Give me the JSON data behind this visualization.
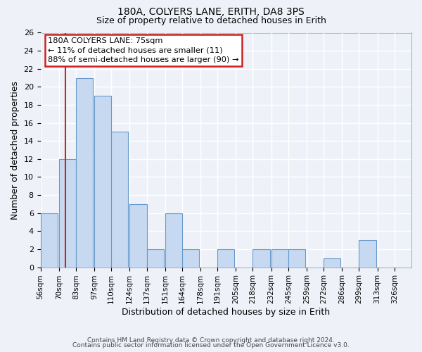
{
  "title": "180A, COLYERS LANE, ERITH, DA8 3PS",
  "subtitle": "Size of property relative to detached houses in Erith",
  "xlabel": "Distribution of detached houses by size in Erith",
  "ylabel": "Number of detached properties",
  "bin_labels": [
    "56sqm",
    "70sqm",
    "83sqm",
    "97sqm",
    "110sqm",
    "124sqm",
    "137sqm",
    "151sqm",
    "164sqm",
    "178sqm",
    "191sqm",
    "205sqm",
    "218sqm",
    "232sqm",
    "245sqm",
    "259sqm",
    "272sqm",
    "286sqm",
    "299sqm",
    "313sqm",
    "326sqm"
  ],
  "bar_values": [
    6,
    12,
    21,
    19,
    15,
    7,
    2,
    6,
    2,
    0,
    2,
    0,
    2,
    2,
    2,
    0,
    1,
    0,
    3,
    0,
    0
  ],
  "bar_color": "#c6d9f0",
  "bar_edge_color": "#6699cc",
  "vline_x": 75,
  "vline_color": "#cc2222",
  "ylim": [
    0,
    26
  ],
  "yticks": [
    0,
    2,
    4,
    6,
    8,
    10,
    12,
    14,
    16,
    18,
    20,
    22,
    24,
    26
  ],
  "annotation_title": "180A COLYERS LANE: 75sqm",
  "annotation_line1": "← 11% of detached houses are smaller (11)",
  "annotation_line2": "88% of semi-detached houses are larger (90) →",
  "annotation_box_color": "#ffffff",
  "annotation_box_edge": "#cc2222",
  "footer1": "Contains HM Land Registry data © Crown copyright and database right 2024.",
  "footer2": "Contains public sector information licensed under the Open Government Licence v3.0.",
  "background_color": "#eef2f8",
  "grid_color": "#ffffff",
  "bin_starts": [
    56,
    70,
    83,
    97,
    110,
    124,
    137,
    151,
    164,
    178,
    191,
    205,
    218,
    232,
    245,
    259,
    272,
    286,
    299,
    313,
    326
  ],
  "bin_widths": [
    14,
    13,
    14,
    13,
    14,
    13,
    14,
    13,
    14,
    13,
    14,
    13,
    14,
    13,
    14,
    13,
    14,
    13,
    14,
    13,
    13
  ]
}
